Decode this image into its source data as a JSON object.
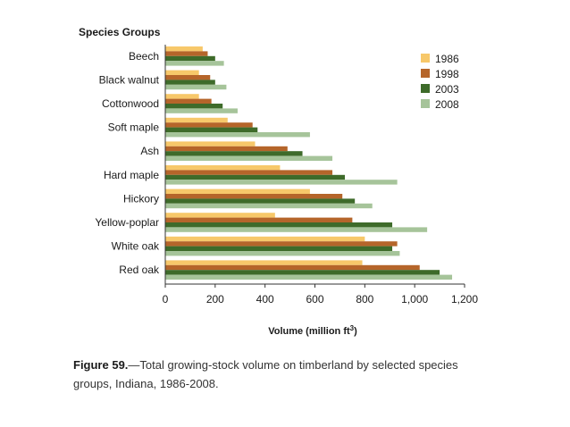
{
  "chart_data": {
    "type": "bar",
    "orientation": "horizontal",
    "category_axis_title": "Species Groups",
    "xlabel": "Volume (million ft",
    "xlabel_superscript": "3",
    "xlabel_close": ")",
    "xlim": [
      0,
      1200
    ],
    "xticks": [
      0,
      200,
      400,
      600,
      800,
      1000,
      1200
    ],
    "xtick_labels": [
      "0",
      "200",
      "400",
      "600",
      "800",
      "1,000",
      "1,200"
    ],
    "grid": false,
    "legend_position": "top-right",
    "categories": [
      "Beech",
      "Black walnut",
      "Cottonwood",
      "Soft maple",
      "Ash",
      "Hard maple",
      "Hickory",
      "Yellow-poplar",
      "White oak",
      "Red oak"
    ],
    "series": [
      {
        "name": "1986",
        "color": "#f7c86a",
        "values": [
          150,
          135,
          135,
          250,
          360,
          460,
          580,
          440,
          800,
          790
        ]
      },
      {
        "name": "1998",
        "color": "#b5652a",
        "values": [
          170,
          180,
          185,
          350,
          490,
          670,
          710,
          750,
          930,
          1020
        ]
      },
      {
        "name": "2003",
        "color": "#3e6b2a",
        "values": [
          200,
          200,
          230,
          370,
          550,
          720,
          760,
          910,
          910,
          1100
        ]
      },
      {
        "name": "2008",
        "color": "#a6c49a",
        "values": [
          235,
          245,
          290,
          580,
          670,
          930,
          830,
          1050,
          940,
          1150
        ]
      }
    ]
  },
  "caption": {
    "figure_number": "Figure 59.",
    "text": "—Total growing-stock volume on timberland by selected species groups, Indiana, 1986-2008."
  }
}
